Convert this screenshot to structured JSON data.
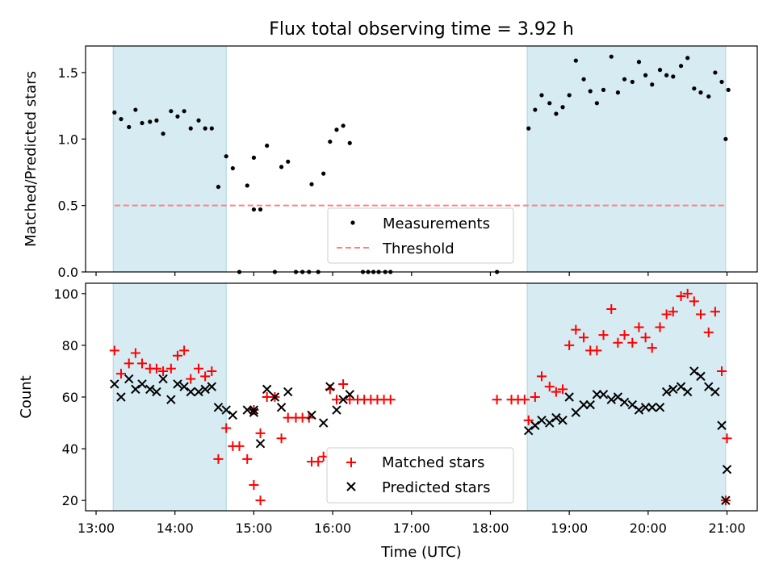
{
  "chart_data": [
    {
      "type": "scatter",
      "title": "Flux total observing time = 3.92 h",
      "xlabel": "",
      "ylabel": "Matched/Predicted stars",
      "xlim": [
        "12:52",
        "21:23"
      ],
      "ylim": [
        0,
        1.7
      ],
      "yticks": [
        "0.0",
        "0.5",
        "1.0",
        "1.5"
      ],
      "grid": false,
      "legend_position": "lower-center",
      "shaded_intervals": [
        [
          "13:13",
          "14:39"
        ],
        [
          "18:28",
          "20:59"
        ]
      ],
      "threshold": 0.5,
      "series": [
        {
          "name": "Measurements",
          "marker": "dot",
          "color": "#000000",
          "points": [
            [
              "13:14",
              1.2
            ],
            [
              "13:19",
              1.15
            ],
            [
              "13:25",
              1.09
            ],
            [
              "13:30",
              1.22
            ],
            [
              "13:35",
              1.12
            ],
            [
              "13:41",
              1.13
            ],
            [
              "13:46",
              1.14
            ],
            [
              "13:51",
              1.04
            ],
            [
              "13:57",
              1.21
            ],
            [
              "14:02",
              1.17
            ],
            [
              "14:07",
              1.21
            ],
            [
              "14:12",
              1.08
            ],
            [
              "14:18",
              1.14
            ],
            [
              "14:23",
              1.08
            ],
            [
              "14:28",
              1.08
            ],
            [
              "14:33",
              0.64
            ],
            [
              "14:39",
              0.87
            ],
            [
              "14:44",
              0.78
            ],
            [
              "14:49",
              0.0
            ],
            [
              "14:55",
              0.65
            ],
            [
              "15:00",
              0.47
            ],
            [
              "15:00",
              0.86
            ],
            [
              "15:05",
              0.47
            ],
            [
              "15:10",
              0.95
            ],
            [
              "15:16",
              0.0
            ],
            [
              "15:21",
              0.79
            ],
            [
              "15:26",
              0.83
            ],
            [
              "15:32",
              0.0
            ],
            [
              "15:37",
              0.0
            ],
            [
              "15:42",
              0.0
            ],
            [
              "15:44",
              0.66
            ],
            [
              "15:49",
              0.0
            ],
            [
              "15:53",
              0.74
            ],
            [
              "15:58",
              0.98
            ],
            [
              "16:03",
              1.07
            ],
            [
              "16:08",
              1.1
            ],
            [
              "16:13",
              0.97
            ],
            [
              "16:23",
              0.0
            ],
            [
              "16:27",
              0.0
            ],
            [
              "16:31",
              0.0
            ],
            [
              "16:35",
              0.0
            ],
            [
              "16:40",
              0.0
            ],
            [
              "16:44",
              0.0
            ],
            [
              "18:05",
              0.0
            ],
            [
              "18:29",
              1.08
            ],
            [
              "18:34",
              1.22
            ],
            [
              "18:39",
              1.33
            ],
            [
              "18:45",
              1.27
            ],
            [
              "18:50",
              1.19
            ],
            [
              "18:55",
              1.24
            ],
            [
              "19:00",
              1.33
            ],
            [
              "19:05",
              1.59
            ],
            [
              "19:11",
              1.45
            ],
            [
              "19:16",
              1.36
            ],
            [
              "19:21",
              1.27
            ],
            [
              "19:26",
              1.37
            ],
            [
              "19:32",
              1.62
            ],
            [
              "19:37",
              1.35
            ],
            [
              "19:42",
              1.45
            ],
            [
              "19:48",
              1.43
            ],
            [
              "19:53",
              1.58
            ],
            [
              "19:58",
              1.48
            ],
            [
              "20:03",
              1.41
            ],
            [
              "20:09",
              1.52
            ],
            [
              "20:14",
              1.48
            ],
            [
              "20:19",
              1.47
            ],
            [
              "20:25",
              1.55
            ],
            [
              "20:30",
              1.61
            ],
            [
              "20:35",
              1.38
            ],
            [
              "20:40",
              1.35
            ],
            [
              "20:46",
              1.32
            ],
            [
              "20:51",
              1.5
            ],
            [
              "20:56",
              1.43
            ],
            [
              "21:01",
              1.37
            ],
            [
              "20:59",
              1.0
            ]
          ]
        },
        {
          "name": "Threshold",
          "type": "line",
          "style": "dashed",
          "color": "#ff8080",
          "points": [
            [
              "13:14",
              0.5
            ],
            [
              "21:00",
              0.5
            ]
          ]
        }
      ]
    },
    {
      "type": "scatter",
      "title": "",
      "xlabel": "Time (UTC)",
      "ylabel": "Count",
      "xlim": [
        "12:52",
        "21:23"
      ],
      "ylim": [
        16,
        104
      ],
      "xticks": [
        "13:00",
        "14:00",
        "15:00",
        "16:00",
        "17:00",
        "18:00",
        "19:00",
        "20:00",
        "21:00"
      ],
      "yticks": [
        "20",
        "40",
        "60",
        "80",
        "100"
      ],
      "grid": false,
      "legend_position": "lower-center",
      "shaded_intervals": [
        [
          "13:13",
          "14:39"
        ],
        [
          "18:28",
          "20:59"
        ]
      ],
      "series": [
        {
          "name": "Matched stars",
          "marker": "plus",
          "color": "#ff0000",
          "points": [
            [
              "13:14",
              78
            ],
            [
              "13:19",
              69
            ],
            [
              "13:25",
              73
            ],
            [
              "13:30",
              77
            ],
            [
              "13:35",
              73
            ],
            [
              "13:41",
              71
            ],
            [
              "13:46",
              71
            ],
            [
              "13:51",
              70
            ],
            [
              "13:57",
              71
            ],
            [
              "14:02",
              76
            ],
            [
              "14:07",
              78
            ],
            [
              "14:12",
              67
            ],
            [
              "14:18",
              71
            ],
            [
              "14:23",
              68
            ],
            [
              "14:28",
              70
            ],
            [
              "14:33",
              36
            ],
            [
              "14:39",
              48
            ],
            [
              "14:44",
              41
            ],
            [
              "14:49",
              41
            ],
            [
              "14:55",
              36
            ],
            [
              "15:00",
              26
            ],
            [
              "15:00",
              55
            ],
            [
              "15:05",
              46
            ],
            [
              "15:05",
              20
            ],
            [
              "15:10",
              60
            ],
            [
              "15:16",
              60
            ],
            [
              "15:21",
              44
            ],
            [
              "15:26",
              52
            ],
            [
              "15:32",
              52
            ],
            [
              "15:37",
              52
            ],
            [
              "15:42",
              52
            ],
            [
              "15:44",
              35
            ],
            [
              "15:49",
              35
            ],
            [
              "15:53",
              37
            ],
            [
              "15:58",
              63
            ],
            [
              "16:03",
              59
            ],
            [
              "16:08",
              65
            ],
            [
              "16:13",
              59
            ],
            [
              "16:19",
              59
            ],
            [
              "16:24",
              59
            ],
            [
              "16:29",
              59
            ],
            [
              "16:34",
              59
            ],
            [
              "16:39",
              59
            ],
            [
              "16:44",
              59
            ],
            [
              "18:05",
              59
            ],
            [
              "18:16",
              59
            ],
            [
              "18:21",
              59
            ],
            [
              "18:26",
              59
            ],
            [
              "18:29",
              51
            ],
            [
              "18:34",
              60
            ],
            [
              "18:39",
              68
            ],
            [
              "18:45",
              64
            ],
            [
              "18:50",
              62
            ],
            [
              "18:55",
              63
            ],
            [
              "19:00",
              80
            ],
            [
              "19:05",
              86
            ],
            [
              "19:11",
              83
            ],
            [
              "19:16",
              78
            ],
            [
              "19:21",
              78
            ],
            [
              "19:26",
              84
            ],
            [
              "19:32",
              94
            ],
            [
              "19:37",
              81
            ],
            [
              "19:42",
              84
            ],
            [
              "19:48",
              81
            ],
            [
              "19:53",
              87
            ],
            [
              "19:58",
              83
            ],
            [
              "20:03",
              79
            ],
            [
              "20:09",
              87
            ],
            [
              "20:14",
              92
            ],
            [
              "20:19",
              93
            ],
            [
              "20:25",
              99
            ],
            [
              "20:30",
              100
            ],
            [
              "20:35",
              97
            ],
            [
              "20:40",
              92
            ],
            [
              "20:46",
              85
            ],
            [
              "20:51",
              93
            ],
            [
              "20:56",
              70
            ],
            [
              "21:00",
              44
            ],
            [
              "20:59",
              20
            ]
          ]
        },
        {
          "name": "Predicted stars",
          "marker": "x",
          "color": "#000000",
          "points": [
            [
              "13:14",
              65
            ],
            [
              "13:19",
              60
            ],
            [
              "13:25",
              67
            ],
            [
              "13:30",
              63
            ],
            [
              "13:35",
              65
            ],
            [
              "13:41",
              63
            ],
            [
              "13:46",
              62
            ],
            [
              "13:51",
              67
            ],
            [
              "13:57",
              59
            ],
            [
              "14:02",
              65
            ],
            [
              "14:07",
              64
            ],
            [
              "14:12",
              62
            ],
            [
              "14:18",
              62
            ],
            [
              "14:23",
              63
            ],
            [
              "14:28",
              64
            ],
            [
              "14:33",
              56
            ],
            [
              "14:39",
              55
            ],
            [
              "14:44",
              53
            ],
            [
              "14:55",
              55
            ],
            [
              "15:00",
              55
            ],
            [
              "15:00",
              54
            ],
            [
              "15:05",
              42
            ],
            [
              "15:10",
              63
            ],
            [
              "15:16",
              60
            ],
            [
              "15:21",
              56
            ],
            [
              "15:26",
              62
            ],
            [
              "15:44",
              53
            ],
            [
              "15:53",
              50
            ],
            [
              "15:58",
              64
            ],
            [
              "16:03",
              55
            ],
            [
              "16:08",
              59
            ],
            [
              "16:13",
              61
            ],
            [
              "18:29",
              47
            ],
            [
              "18:34",
              49
            ],
            [
              "18:39",
              51
            ],
            [
              "18:45",
              50
            ],
            [
              "18:50",
              52
            ],
            [
              "18:55",
              51
            ],
            [
              "19:00",
              60
            ],
            [
              "19:05",
              54
            ],
            [
              "19:11",
              57
            ],
            [
              "19:16",
              57
            ],
            [
              "19:21",
              61
            ],
            [
              "19:26",
              61
            ],
            [
              "19:32",
              59
            ],
            [
              "19:37",
              60
            ],
            [
              "19:42",
              58
            ],
            [
              "19:48",
              57
            ],
            [
              "19:53",
              55
            ],
            [
              "19:58",
              56
            ],
            [
              "20:03",
              56
            ],
            [
              "20:09",
              56
            ],
            [
              "20:14",
              62
            ],
            [
              "20:19",
              63
            ],
            [
              "20:25",
              64
            ],
            [
              "20:30",
              62
            ],
            [
              "20:35",
              70
            ],
            [
              "20:40",
              68
            ],
            [
              "20:46",
              64
            ],
            [
              "20:51",
              62
            ],
            [
              "20:56",
              49
            ],
            [
              "21:00",
              32
            ],
            [
              "20:59",
              20
            ]
          ]
        }
      ]
    }
  ]
}
